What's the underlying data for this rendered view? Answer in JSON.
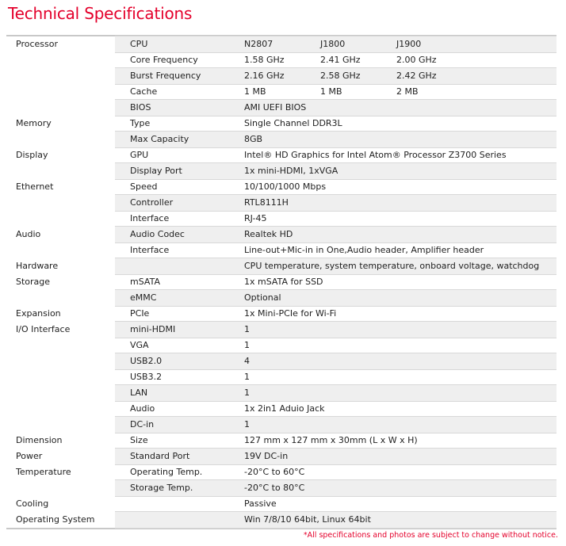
{
  "title": "Technical Specifications",
  "rows": [
    {
      "group": "Processor",
      "item": "CPU",
      "values": [
        "N2807",
        "J1800",
        "J1900"
      ]
    },
    {
      "group": "",
      "item": "Core Frequency",
      "values": [
        "1.58 GHz",
        "2.41 GHz",
        "2.00 GHz"
      ]
    },
    {
      "group": "",
      "item": "Burst Frequency",
      "values": [
        "2.16 GHz",
        "2.58 GHz",
        "2.42 GHz"
      ]
    },
    {
      "group": "",
      "item": "Cache",
      "values": [
        "1 MB",
        "1 MB",
        "2 MB"
      ]
    },
    {
      "group": "",
      "item": "BIOS",
      "values": [
        "AMI UEFI BIOS"
      ]
    },
    {
      "group": "Memory",
      "item": "Type",
      "values": [
        "Single Channel DDR3L"
      ]
    },
    {
      "group": "",
      "item": "Max Capacity",
      "values": [
        "8GB"
      ]
    },
    {
      "group": "Display",
      "item": "GPU",
      "values": [
        "Intel® HD Graphics for Intel Atom® Processor Z3700 Series"
      ]
    },
    {
      "group": "",
      "item": "Display Port",
      "values": [
        "1x mini-HDMI, 1xVGA"
      ]
    },
    {
      "group": "Ethernet",
      "item": "Speed",
      "values": [
        "10/100/1000 Mbps"
      ]
    },
    {
      "group": "",
      "item": "Controller",
      "values": [
        "RTL8111H"
      ]
    },
    {
      "group": "",
      "item": "Interface",
      "values": [
        "RJ-45"
      ]
    },
    {
      "group": "Audio",
      "item": "Audio Codec",
      "values": [
        "Realtek HD"
      ]
    },
    {
      "group": "",
      "item": "Interface",
      "values": [
        "Line-out+Mic-in in One,Audio header, Amplifier header"
      ]
    },
    {
      "group": "Hardware",
      "item": "",
      "values": [
        "CPU temperature, system temperature, onboard voltage, watchdog"
      ]
    },
    {
      "group": "Storage",
      "item": "mSATA",
      "values": [
        "1x mSATA for SSD"
      ]
    },
    {
      "group": "",
      "item": "eMMC",
      "values": [
        "Optional"
      ]
    },
    {
      "group": "Expansion",
      "item": "PCIe",
      "values": [
        "1x Mini-PCIe for Wi-Fi"
      ]
    },
    {
      "group": "I/O Interface",
      "item": "mini-HDMI",
      "values": [
        "1"
      ]
    },
    {
      "group": "",
      "item": "VGA",
      "values": [
        "1"
      ]
    },
    {
      "group": "",
      "item": "USB2.0",
      "values": [
        "4"
      ]
    },
    {
      "group": "",
      "item": "USB3.2",
      "values": [
        "1"
      ]
    },
    {
      "group": "",
      "item": "LAN",
      "values": [
        "1"
      ]
    },
    {
      "group": "",
      "item": "Audio",
      "values": [
        "1x 2in1 Aduio Jack"
      ]
    },
    {
      "group": "",
      "item": "DC-in",
      "values": [
        "1"
      ]
    },
    {
      "group": "Dimension",
      "item": "Size",
      "values": [
        "127 mm x 127 mm x 30mm (L x W x H)"
      ]
    },
    {
      "group": "Power",
      "item": "Standard Port",
      "values": [
        "19V DC-in"
      ]
    },
    {
      "group": "Temperature",
      "item": "Operating Temp.",
      "values": [
        "-20°C to 60°C"
      ]
    },
    {
      "group": "",
      "item": "Storage Temp.",
      "values": [
        "-20°C to 80°C"
      ]
    },
    {
      "group": "Cooling",
      "item": "",
      "values": [
        "Passive"
      ]
    },
    {
      "group": "Operating System",
      "item": "",
      "values": [
        "Win 7/8/10 64bit, Linux 64bit"
      ]
    }
  ],
  "note": "*All specifications and photos are subject to change without notice.",
  "colors": {
    "accent": "#e4002b",
    "band": "#efefef"
  }
}
